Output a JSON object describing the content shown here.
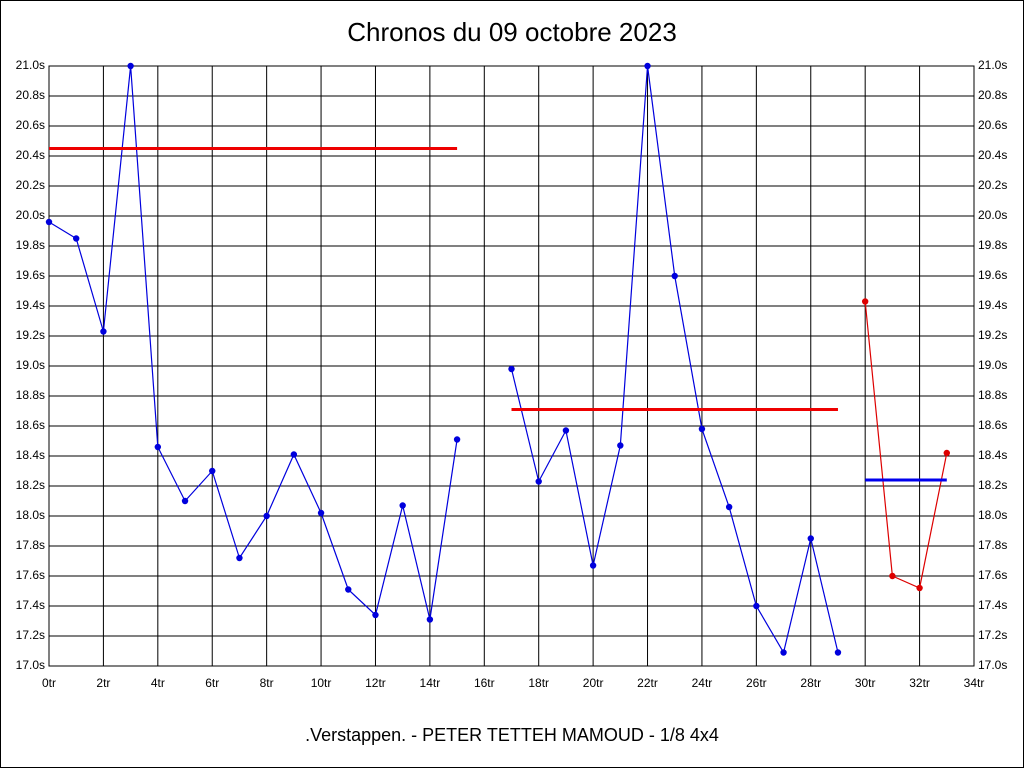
{
  "chart_data": {
    "type": "line",
    "title": "Chronos du 09 octobre 2023",
    "caption": ".Verstappen. - PETER TETTEH MAMOUD - 1/8 4x4",
    "grid": true,
    "xlim": [
      0,
      34
    ],
    "xticks": [
      {
        "value": 0,
        "label": "0tr"
      },
      {
        "value": 2,
        "label": "2tr"
      },
      {
        "value": 4,
        "label": "4tr"
      },
      {
        "value": 6,
        "label": "6tr"
      },
      {
        "value": 8,
        "label": "8tr"
      },
      {
        "value": 10,
        "label": "10tr"
      },
      {
        "value": 12,
        "label": "12tr"
      },
      {
        "value": 14,
        "label": "14tr"
      },
      {
        "value": 16,
        "label": "16tr"
      },
      {
        "value": 18,
        "label": "18tr"
      },
      {
        "value": 20,
        "label": "20tr"
      },
      {
        "value": 22,
        "label": "22tr"
      },
      {
        "value": 24,
        "label": "24tr"
      },
      {
        "value": 26,
        "label": "26tr"
      },
      {
        "value": 28,
        "label": "28tr"
      },
      {
        "value": 30,
        "label": "30tr"
      },
      {
        "value": 32,
        "label": "32tr"
      },
      {
        "value": 34,
        "label": "34tr"
      }
    ],
    "ylim": [
      17.0,
      21.0
    ],
    "yticks": [
      {
        "value": 17.0,
        "label": "17.0s"
      },
      {
        "value": 17.2,
        "label": "17.2s"
      },
      {
        "value": 17.4,
        "label": "17.4s"
      },
      {
        "value": 17.6,
        "label": "17.6s"
      },
      {
        "value": 17.8,
        "label": "17.8s"
      },
      {
        "value": 18.0,
        "label": "18.0s"
      },
      {
        "value": 18.2,
        "label": "18.2s"
      },
      {
        "value": 18.4,
        "label": "18.4s"
      },
      {
        "value": 18.6,
        "label": "18.6s"
      },
      {
        "value": 18.8,
        "label": "18.8s"
      },
      {
        "value": 19.0,
        "label": "19.0s"
      },
      {
        "value": 19.2,
        "label": "19.2s"
      },
      {
        "value": 19.4,
        "label": "19.4s"
      },
      {
        "value": 19.6,
        "label": "19.6s"
      },
      {
        "value": 19.8,
        "label": "19.8s"
      },
      {
        "value": 20.0,
        "label": "20.0s"
      },
      {
        "value": 20.2,
        "label": "20.2s"
      },
      {
        "value": 20.4,
        "label": "20.4s"
      },
      {
        "value": 20.6,
        "label": "20.6s"
      },
      {
        "value": 20.8,
        "label": "20.8s"
      },
      {
        "value": 21.0,
        "label": "21.0s"
      }
    ],
    "series": [
      {
        "color": "#0000dd",
        "markers": true,
        "x": [
          0,
          1,
          2,
          3,
          4,
          5,
          6,
          7,
          8,
          9,
          10,
          11,
          12,
          13,
          14,
          15,
          16,
          17,
          18,
          19,
          20,
          21,
          22,
          23,
          24,
          25,
          26,
          27,
          28,
          29
        ],
        "values": [
          19.96,
          19.85,
          19.23,
          21.0,
          18.46,
          18.1,
          18.3,
          17.72,
          18.0,
          18.41,
          18.02,
          17.51,
          17.34,
          18.07,
          17.31,
          18.51,
          null,
          18.98,
          18.23,
          18.57,
          17.67,
          18.47,
          21.0,
          19.6,
          18.58,
          18.06,
          17.4,
          17.09,
          17.85,
          17.09
        ]
      },
      {
        "color": "#dd0000",
        "markers": true,
        "x": [
          30,
          31,
          32,
          33
        ],
        "values": [
          19.43,
          17.6,
          17.52,
          18.42
        ]
      },
      {
        "color": "#ee0000",
        "markers": false,
        "x": [
          0,
          15
        ],
        "values": [
          20.45,
          20.45
        ]
      },
      {
        "color": "#ee0000",
        "markers": false,
        "x": [
          17,
          29
        ],
        "values": [
          18.71,
          18.71
        ]
      },
      {
        "color": "#0000ee",
        "markers": false,
        "x": [
          30,
          33
        ],
        "values": [
          18.24,
          18.24
        ]
      }
    ]
  }
}
